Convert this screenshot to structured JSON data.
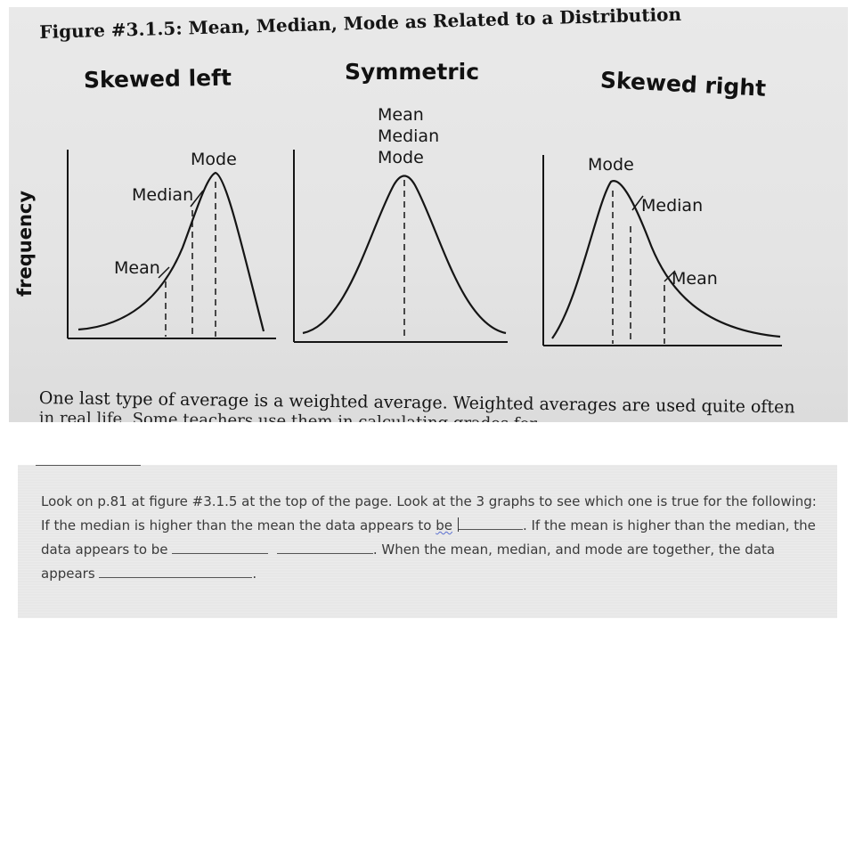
{
  "figure": {
    "title": "Figure #3.1.5: Mean, Median, Mode as Related to a Distribution",
    "y_axis_label": "frequency",
    "panels": [
      {
        "title": "Skewed left",
        "labels": {
          "mode": "Mode",
          "median": "Median",
          "mean": "Mean"
        }
      },
      {
        "title": "Symmetric",
        "labels": {
          "mean": "Mean",
          "median": "Median",
          "mode": "Mode"
        }
      },
      {
        "title": "Skewed right",
        "labels": {
          "mode": "Mode",
          "median": "Median",
          "mean": "Mean"
        }
      }
    ],
    "body_text_line1": "One last type of average is a weighted average.  Weighted averages are used quite often",
    "body_text_line2": "in real life.  Some teachers use them in calculating grades for"
  },
  "question": {
    "part1": "Look on p.81 at figure #3.1.5 at the top of the page. Look at the 3 graphs to see which one is true for the following:  If the median is higher than the mean the data appears to ",
    "part1_tail": "be",
    "part2": ". If the mean is higher than the median, the data appears to be ",
    "part3": ". When the mean, median, and mode are together, the data appears ",
    "part4": "."
  },
  "colors": {
    "photo_bg": "#e6e6e6",
    "panel_bg": "#e7e7e7",
    "ink": "#151515",
    "panel_text": "#3a3a3a"
  }
}
